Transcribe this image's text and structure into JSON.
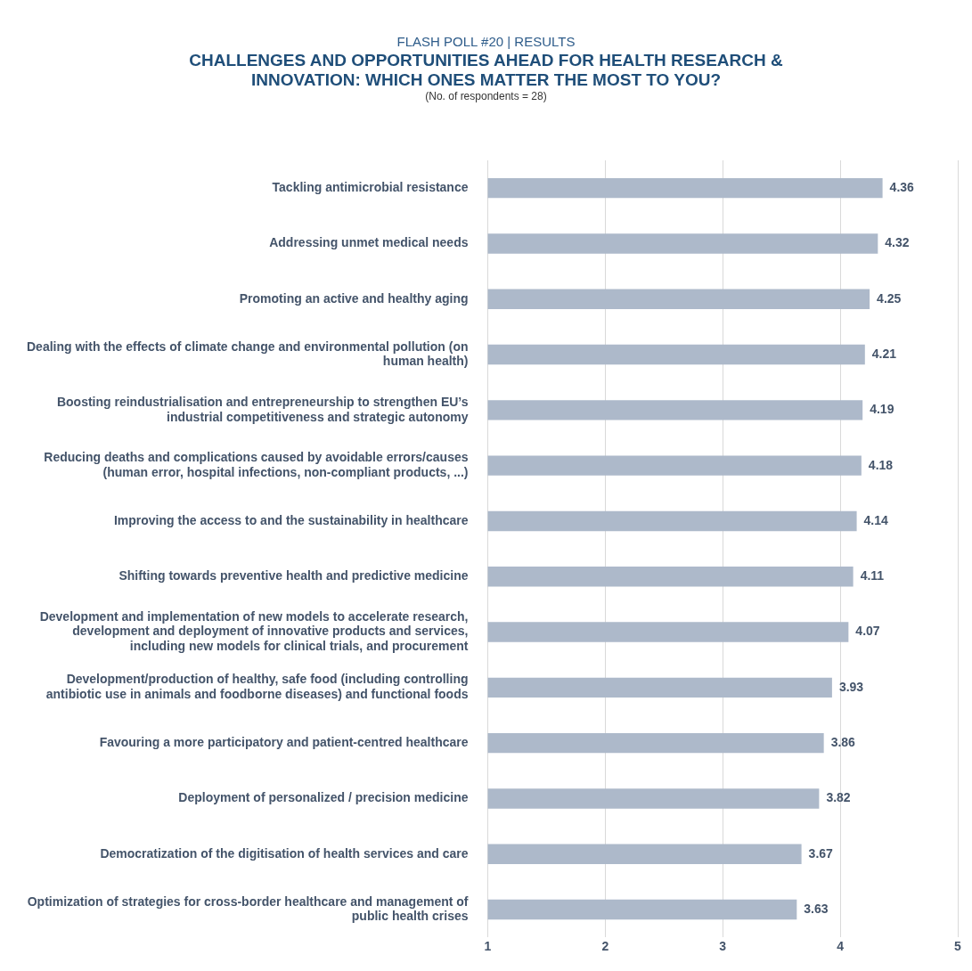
{
  "chart_data": {
    "type": "bar",
    "orientation": "horizontal",
    "title": "CHALLENGES AND OPPORTUNITIES AHEAD FOR HEALTH RESEARCH & INNOVATION: WHICH ONES MATTER THE MOST TO YOU?",
    "subtitle": "FLASH POLL #20 | RESULTS",
    "annotations": [
      "(No. of respondents = 28)"
    ],
    "categories": [
      "Tackling antimicrobial resistance",
      "Addressing unmet medical needs",
      "Promoting an active and healthy aging",
      "Dealing with the effects of climate change and environmental pollution (on human health)",
      "Boosting reindustrialisation and entrepreneurship to strengthen EU’s industrial competitiveness and strategic autonomy",
      "Reducing deaths and complications caused by avoidable errors/causes (human error, hospital infections, non-compliant products, ...)",
      "Improving the access to and the sustainability in healthcare",
      "Shifting towards preventive health and predictive medicine",
      "Development and implementation of new models to accelerate research, development and deployment of innovative products and services, including new models for clinical trials, and procurement",
      "Development/production of healthy, safe food (including controlling antibiotic use in animals and foodborne diseases) and functional foods",
      "Favouring a more participatory and patient-centred healthcare",
      "Deployment of personalized / precision medicine",
      "Democratization of the digitisation of health services and care",
      "Optimization of strategies for cross-border healthcare and management of public health crises"
    ],
    "values": [
      4.36,
      4.32,
      4.25,
      4.21,
      4.19,
      4.18,
      4.14,
      4.11,
      4.07,
      3.93,
      3.86,
      3.82,
      3.67,
      3.63
    ],
    "color": "#adb9ca",
    "xlim": [
      1,
      5
    ],
    "xticks": [
      1,
      2,
      3,
      4,
      5
    ],
    "grid": "x",
    "data_labels": true,
    "legend": false
  }
}
